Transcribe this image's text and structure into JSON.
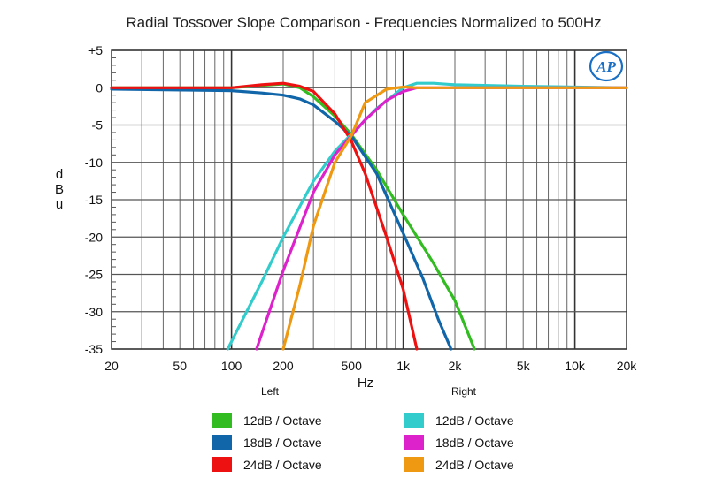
{
  "chart_data": {
    "type": "line",
    "title": "Radial Tossover Slope Comparison - Frequencies Normalized to 500Hz",
    "xlabel": "Hz",
    "ylabel": "dBu",
    "x_scale": "log",
    "xlim": [
      20,
      20000
    ],
    "ylim": [
      -35,
      5
    ],
    "grid": true,
    "x_tick_values": [
      20,
      50,
      100,
      200,
      500,
      1000,
      2000,
      5000,
      10000,
      20000
    ],
    "x_tick_labels": [
      "20",
      "50",
      "100",
      "200",
      "500",
      "1k",
      "2k",
      "5k",
      "10k",
      "20k"
    ],
    "y_tick_values": [
      5,
      0,
      -5,
      -10,
      -15,
      -20,
      -25,
      -30,
      -35
    ],
    "y_tick_labels": [
      "+5",
      "0",
      "-5",
      "-10",
      "-15",
      "-20",
      "-25",
      "-30",
      "-35"
    ],
    "x_sublabels": {
      "left": "Left",
      "right": "Right"
    },
    "legend_placement": "bottom",
    "logo_text": "AP",
    "series": [
      {
        "name": "12dB / Octave",
        "color": "#33bb22",
        "group": "left",
        "x": [
          20,
          100,
          150,
          200,
          250,
          300,
          400,
          500,
          700,
          1000,
          1500,
          2000,
          2600
        ],
        "y": [
          0,
          0,
          0.3,
          0.5,
          0,
          -1.2,
          -3.8,
          -6.3,
          -11,
          -17,
          -23.5,
          -28.5,
          -35
        ]
      },
      {
        "name": "18dB / Octave",
        "color": "#1166aa",
        "group": "left",
        "x": [
          20,
          100,
          150,
          200,
          250,
          300,
          400,
          500,
          700,
          1000,
          1300,
          1600,
          1900
        ],
        "y": [
          -0.2,
          -0.4,
          -0.7,
          -1.0,
          -1.5,
          -2.3,
          -4.5,
          -6.5,
          -11.5,
          -19.5,
          -25.5,
          -31,
          -35
        ]
      },
      {
        "name": "24dB / Octave",
        "color": "#ee1111",
        "group": "left",
        "x": [
          20,
          100,
          150,
          200,
          250,
          300,
          400,
          500,
          600,
          800,
          1000,
          1200
        ],
        "y": [
          0,
          0,
          0.4,
          0.6,
          0.2,
          -0.5,
          -3.5,
          -7.2,
          -11.5,
          -20,
          -27,
          -35
        ]
      },
      {
        "name": "12dB / Octave",
        "color": "#33cccc",
        "group": "right",
        "x": [
          95,
          150,
          200,
          300,
          400,
          500,
          700,
          1000,
          1200,
          1500,
          2000,
          5000,
          20000
        ],
        "y": [
          -35,
          -26,
          -20,
          -12.5,
          -8.5,
          -6.2,
          -2.8,
          0,
          0.6,
          0.6,
          0.4,
          0.2,
          0
        ]
      },
      {
        "name": "18dB / Octave",
        "color": "#dd22cc",
        "group": "right",
        "x": [
          140,
          200,
          300,
          400,
          500,
          600,
          800,
          1000,
          1200,
          1500,
          2000,
          20000
        ],
        "y": [
          -35,
          -24.5,
          -14,
          -9,
          -6.4,
          -4.3,
          -1.7,
          -0.5,
          0,
          0,
          0,
          0
        ]
      },
      {
        "name": "24dB / Octave",
        "color": "#ee9911",
        "group": "right",
        "x": [
          200,
          250,
          300,
          400,
          500,
          600,
          800,
          1000,
          1200,
          1500,
          2000,
          20000
        ],
        "y": [
          -35,
          -26.5,
          -18.5,
          -10,
          -6.4,
          -2,
          -0.2,
          0.1,
          0,
          0,
          0,
          0
        ]
      }
    ]
  }
}
